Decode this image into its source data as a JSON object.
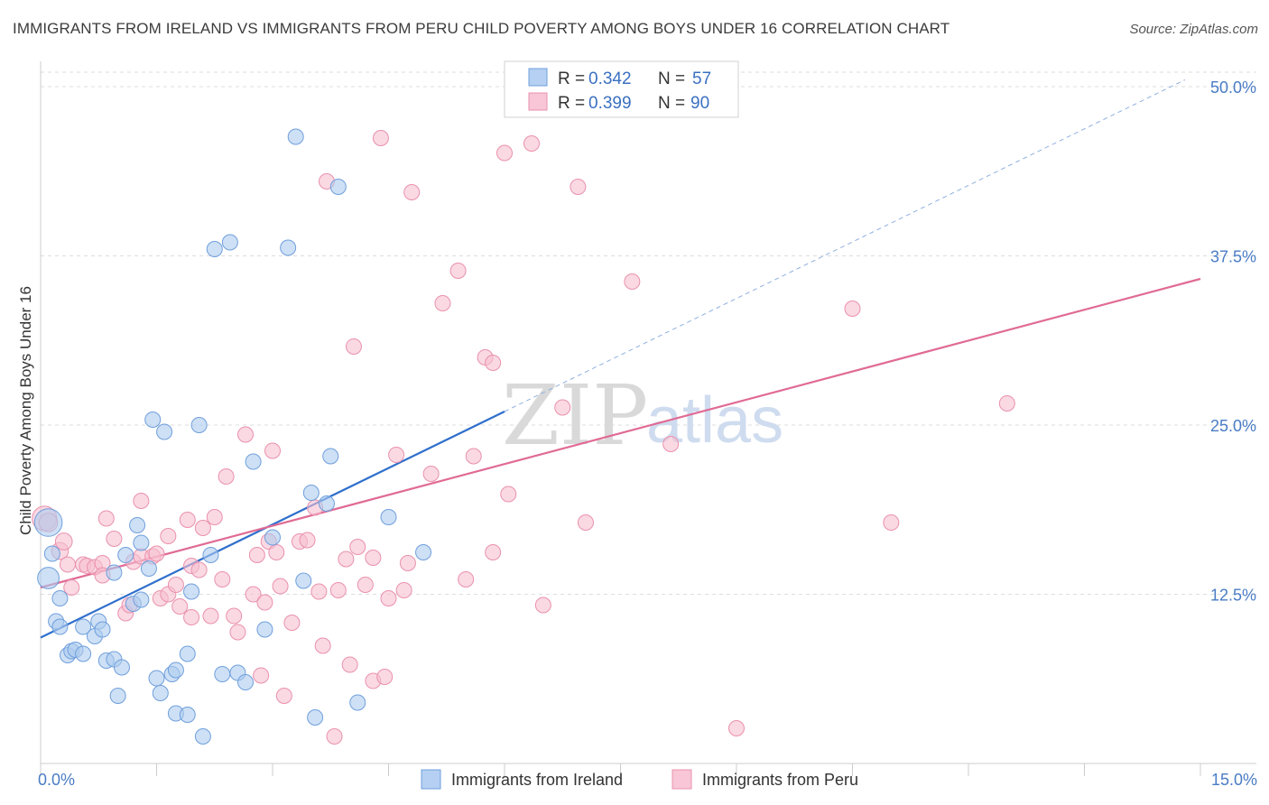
{
  "header": {
    "title": "IMMIGRANTS FROM IRELAND VS IMMIGRANTS FROM PERU CHILD POVERTY AMONG BOYS UNDER 16 CORRELATION CHART",
    "source": "Source: ZipAtlas.com"
  },
  "watermark": {
    "zip": "ZIP",
    "atlas": "atlas"
  },
  "colors": {
    "ireland_fill": "#aecbef",
    "ireland_stroke": "#6f9fdc",
    "ireland_line": "#2f6fcc",
    "peru_fill": "#f6bfd0",
    "peru_stroke": "#ea91ad",
    "peru_line": "#e06b95",
    "grid": "#dddddd",
    "tick_text": "#4a7cc4"
  },
  "chart_data": {
    "type": "scatter",
    "title": "IMMIGRANTS FROM IRELAND VS IMMIGRANTS FROM PERU CHILD POVERTY AMONG BOYS UNDER 16 CORRELATION CHART",
    "xlabel": "",
    "ylabel": "Child Poverty Among Boys Under 16",
    "xlim": [
      0,
      15
    ],
    "ylim": [
      0,
      50
    ],
    "x_tick_labels": [
      {
        "value": 0,
        "label": "0.0%"
      },
      {
        "value": 15,
        "label": "15.0%"
      }
    ],
    "y_tick_labels": [
      {
        "value": 12.5,
        "label": "12.5%"
      },
      {
        "value": 25,
        "label": "25.0%"
      },
      {
        "value": 37.5,
        "label": "37.5%"
      },
      {
        "value": 50,
        "label": "50.0%"
      }
    ],
    "grid": true,
    "legend": {
      "position": "top-center",
      "entries": [
        {
          "series": "Immigrants from Ireland",
          "r_label": "R =",
          "r_value": "0.342",
          "n_label": "N =",
          "n_value": "57"
        },
        {
          "series": "Immigrants from Peru",
          "r_label": "R =",
          "r_value": "0.399",
          "n_label": "N =",
          "n_value": "90"
        }
      ]
    },
    "series": [
      {
        "name": "Immigrants from Ireland",
        "trend": {
          "x0": 0,
          "y0": 9.3,
          "x1": 6.0,
          "y1": 26.0,
          "extend_to_x": 14.8,
          "extend_to_y": 50.5
        },
        "points": [
          [
            0.1,
            17.8,
            1.8
          ],
          [
            0.1,
            13.7,
            1.4
          ],
          [
            0.15,
            15.5,
            1.0
          ],
          [
            0.25,
            12.2,
            1
          ],
          [
            0.2,
            10.5,
            1
          ],
          [
            0.25,
            10.1,
            1
          ],
          [
            0.35,
            8.0,
            1
          ],
          [
            0.4,
            8.3,
            1
          ],
          [
            0.45,
            8.4,
            1
          ],
          [
            0.55,
            8.1,
            1
          ],
          [
            0.55,
            10.1,
            1
          ],
          [
            0.7,
            9.4,
            1
          ],
          [
            0.75,
            10.5,
            1
          ],
          [
            0.8,
            9.9,
            1
          ],
          [
            0.95,
            14.1,
            1
          ],
          [
            0.85,
            7.6,
            1
          ],
          [
            0.95,
            7.7,
            1
          ],
          [
            1.05,
            7.1,
            1
          ],
          [
            1.0,
            5.0,
            1
          ],
          [
            1.1,
            15.4,
            1
          ],
          [
            1.2,
            11.8,
            1
          ],
          [
            1.25,
            17.6,
            1
          ],
          [
            1.3,
            16.3,
            1
          ],
          [
            1.3,
            12.1,
            1
          ],
          [
            1.4,
            14.4,
            1
          ],
          [
            1.45,
            25.4,
            1
          ],
          [
            1.5,
            6.3,
            1
          ],
          [
            1.55,
            5.2,
            1
          ],
          [
            1.6,
            24.5,
            1
          ],
          [
            1.7,
            6.6,
            1
          ],
          [
            1.75,
            6.9,
            1
          ],
          [
            1.75,
            3.7,
            1
          ],
          [
            1.9,
            3.6,
            1
          ],
          [
            1.9,
            8.1,
            1
          ],
          [
            1.95,
            12.7,
            1
          ],
          [
            2.05,
            25.0,
            1
          ],
          [
            2.1,
            2.0,
            1
          ],
          [
            2.2,
            15.4,
            1
          ],
          [
            2.25,
            38.0,
            1
          ],
          [
            2.45,
            38.5,
            1
          ],
          [
            2.35,
            6.6,
            1
          ],
          [
            2.55,
            6.7,
            1
          ],
          [
            2.65,
            6.0,
            1
          ],
          [
            2.75,
            22.3,
            1
          ],
          [
            2.9,
            9.9,
            1
          ],
          [
            3.0,
            16.7,
            1
          ],
          [
            3.2,
            38.1,
            1
          ],
          [
            3.3,
            46.3,
            1
          ],
          [
            3.4,
            13.5,
            1
          ],
          [
            3.5,
            20.0,
            1
          ],
          [
            3.55,
            3.4,
            1
          ],
          [
            3.7,
            19.2,
            1
          ],
          [
            3.75,
            22.7,
            1
          ],
          [
            3.85,
            42.6,
            1
          ],
          [
            4.1,
            4.5,
            1
          ],
          [
            4.5,
            18.2,
            1
          ],
          [
            4.95,
            15.6,
            1
          ]
        ]
      },
      {
        "name": "Immigrants from Peru",
        "trend": {
          "x0": 0,
          "y0": 13.0,
          "x1": 15.0,
          "y1": 35.8
        },
        "points": [
          [
            0.05,
            18.1,
            1.6
          ],
          [
            0.1,
            17.8,
            1.2
          ],
          [
            0.25,
            15.7,
            1.1
          ],
          [
            0.3,
            16.4,
            1.1
          ],
          [
            0.35,
            14.7,
            1
          ],
          [
            0.4,
            13.0,
            1
          ],
          [
            0.55,
            14.7,
            1
          ],
          [
            0.6,
            14.6,
            1
          ],
          [
            0.7,
            14.5,
            1
          ],
          [
            0.8,
            14.8,
            1
          ],
          [
            0.8,
            13.9,
            1
          ],
          [
            0.85,
            18.1,
            1
          ],
          [
            0.95,
            16.6,
            1
          ],
          [
            1.1,
            11.1,
            1
          ],
          [
            1.15,
            11.7,
            1
          ],
          [
            1.2,
            14.9,
            1
          ],
          [
            1.3,
            19.4,
            1
          ],
          [
            1.3,
            15.3,
            1
          ],
          [
            1.45,
            15.3,
            1
          ],
          [
            1.5,
            15.5,
            1
          ],
          [
            1.55,
            12.2,
            1
          ],
          [
            1.65,
            12.5,
            1
          ],
          [
            1.65,
            16.8,
            1
          ],
          [
            1.75,
            13.2,
            1
          ],
          [
            1.8,
            11.6,
            1
          ],
          [
            1.9,
            18.0,
            1
          ],
          [
            1.95,
            14.6,
            1
          ],
          [
            1.95,
            10.8,
            1
          ],
          [
            2.05,
            14.3,
            1
          ],
          [
            2.1,
            17.4,
            1
          ],
          [
            2.2,
            10.9,
            1
          ],
          [
            2.25,
            18.2,
            1
          ],
          [
            2.35,
            13.6,
            1
          ],
          [
            2.4,
            21.2,
            1
          ],
          [
            2.5,
            10.9,
            1
          ],
          [
            2.55,
            9.7,
            1
          ],
          [
            2.65,
            24.3,
            1
          ],
          [
            2.75,
            12.5,
            1
          ],
          [
            2.8,
            15.4,
            1
          ],
          [
            2.85,
            6.5,
            1
          ],
          [
            2.9,
            11.9,
            1
          ],
          [
            2.95,
            16.4,
            1
          ],
          [
            3.0,
            23.1,
            1
          ],
          [
            3.05,
            15.6,
            1
          ],
          [
            3.1,
            13.1,
            1
          ],
          [
            3.15,
            5.0,
            1
          ],
          [
            3.25,
            10.4,
            1
          ],
          [
            3.35,
            16.4,
            1
          ],
          [
            3.45,
            16.5,
            1
          ],
          [
            3.55,
            18.9,
            1
          ],
          [
            3.6,
            12.7,
            1
          ],
          [
            3.65,
            8.7,
            1
          ],
          [
            3.7,
            43.0,
            1
          ],
          [
            3.8,
            2.0,
            1
          ],
          [
            3.85,
            12.8,
            1
          ],
          [
            3.95,
            15.1,
            1
          ],
          [
            4.0,
            7.3,
            1
          ],
          [
            4.05,
            30.8,
            1
          ],
          [
            4.1,
            16.0,
            1
          ],
          [
            4.2,
            13.2,
            1
          ],
          [
            4.3,
            15.2,
            1
          ],
          [
            4.3,
            6.1,
            1
          ],
          [
            4.4,
            46.2,
            1
          ],
          [
            4.45,
            6.4,
            1
          ],
          [
            4.5,
            12.2,
            1
          ],
          [
            4.6,
            22.8,
            1
          ],
          [
            4.7,
            12.8,
            1
          ],
          [
            4.75,
            14.8,
            1
          ],
          [
            4.8,
            42.2,
            1
          ],
          [
            5.05,
            21.4,
            1
          ],
          [
            5.2,
            34.0,
            1
          ],
          [
            5.4,
            36.4,
            1
          ],
          [
            5.5,
            13.6,
            1
          ],
          [
            5.6,
            22.7,
            1
          ],
          [
            5.75,
            30.0,
            1
          ],
          [
            5.85,
            29.6,
            1
          ],
          [
            5.85,
            15.6,
            1
          ],
          [
            6.0,
            45.1,
            1
          ],
          [
            6.05,
            19.9,
            1
          ],
          [
            6.35,
            45.8,
            1
          ],
          [
            6.5,
            11.7,
            1
          ],
          [
            6.75,
            26.3,
            1
          ],
          [
            6.95,
            42.6,
            1
          ],
          [
            7.05,
            17.8,
            1
          ],
          [
            7.65,
            35.6,
            1
          ],
          [
            8.15,
            23.6,
            1
          ],
          [
            9.0,
            2.6,
            1
          ],
          [
            10.5,
            33.6,
            1
          ],
          [
            11.0,
            17.8,
            1
          ],
          [
            12.5,
            26.6,
            1
          ]
        ]
      }
    ]
  },
  "bottom_legend": {
    "ireland_label": "Immigrants from Ireland",
    "peru_label": "Immigrants from Peru"
  }
}
